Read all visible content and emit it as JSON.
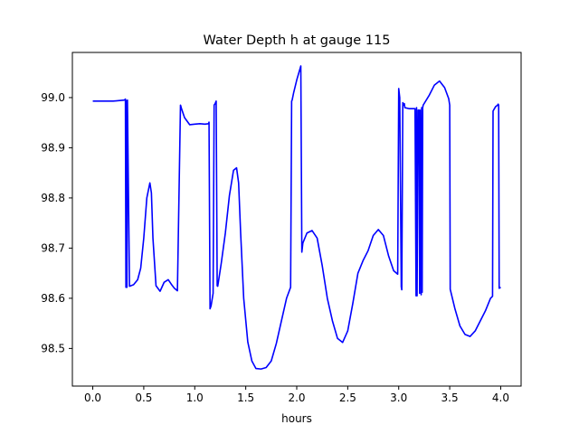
{
  "chart_data": {
    "type": "line",
    "title": "Water Depth h at gauge 115",
    "xlabel": "hours",
    "ylabel": "",
    "xlim": [
      -0.2,
      4.2
    ],
    "ylim": [
      98.425,
      99.09
    ],
    "grid": false,
    "x_ticks": [
      0.0,
      0.5,
      1.0,
      1.5,
      2.0,
      2.5,
      3.0,
      3.5,
      4.0
    ],
    "x_tick_labels": [
      "0.0",
      "0.5",
      "1.0",
      "1.5",
      "2.0",
      "2.5",
      "3.0",
      "3.5",
      "4.0"
    ],
    "y_ticks": [
      98.5,
      98.6,
      98.7,
      98.8,
      98.9,
      99.0
    ],
    "y_tick_labels": [
      "98.5",
      "98.6",
      "98.7",
      "98.8",
      "98.9",
      "99.0"
    ],
    "colors": {
      "line": "#0000ff",
      "axes": "#000000",
      "background": "#ffffff"
    },
    "series": [
      {
        "x": [
          0.0,
          0.2,
          0.31,
          0.32,
          0.325,
          0.33,
          0.335,
          0.34,
          0.36,
          0.4,
          0.44,
          0.47,
          0.5,
          0.53,
          0.56,
          0.575,
          0.59,
          0.62,
          0.66,
          0.7,
          0.74,
          0.77,
          0.8,
          0.83,
          0.86,
          0.862,
          0.87,
          0.9,
          0.95,
          1.0,
          1.05,
          1.1,
          1.135,
          1.14,
          1.15,
          1.16,
          1.18,
          1.19,
          1.2,
          1.21,
          1.22,
          1.225,
          1.23,
          1.26,
          1.3,
          1.34,
          1.38,
          1.41,
          1.43,
          1.45,
          1.48,
          1.52,
          1.56,
          1.6,
          1.65,
          1.7,
          1.75,
          1.8,
          1.85,
          1.9,
          1.94,
          1.95,
          1.955,
          1.97,
          2.0,
          2.04,
          2.05,
          2.06,
          2.1,
          2.15,
          2.2,
          2.25,
          2.3,
          2.35,
          2.4,
          2.45,
          2.5,
          2.55,
          2.6,
          2.65,
          2.7,
          2.75,
          2.8,
          2.85,
          2.9,
          2.95,
          2.99,
          3.0,
          3.01,
          3.025,
          3.03,
          3.04,
          3.05,
          3.055,
          3.06,
          3.1,
          3.16,
          3.17,
          3.175,
          3.18,
          3.19,
          3.2,
          3.205,
          3.21,
          3.22,
          3.225,
          3.23,
          3.235,
          3.24,
          3.3,
          3.35,
          3.4,
          3.45,
          3.49,
          3.5,
          3.505,
          3.55,
          3.6,
          3.65,
          3.7,
          3.75,
          3.8,
          3.85,
          3.9,
          3.92,
          3.925,
          3.93,
          3.95,
          3.97,
          3.975,
          3.98,
          3.985,
          4.0
        ],
        "y": [
          98.993,
          98.993,
          98.995,
          98.997,
          98.622,
          98.994,
          98.622,
          98.995,
          98.624,
          98.627,
          98.637,
          98.66,
          98.72,
          98.8,
          98.83,
          98.81,
          98.72,
          98.625,
          98.614,
          98.632,
          98.637,
          98.628,
          98.62,
          98.615,
          98.985,
          98.984,
          98.978,
          98.96,
          98.946,
          98.947,
          98.948,
          98.947,
          98.948,
          98.951,
          98.579,
          98.585,
          98.61,
          98.985,
          98.988,
          98.993,
          98.625,
          98.624,
          98.63,
          98.67,
          98.73,
          98.805,
          98.855,
          98.86,
          98.83,
          98.73,
          98.6,
          98.513,
          98.475,
          98.46,
          98.459,
          98.462,
          98.475,
          98.51,
          98.555,
          98.6,
          98.622,
          98.993,
          98.995,
          99.01,
          99.035,
          99.063,
          98.692,
          98.71,
          98.73,
          98.735,
          98.72,
          98.665,
          98.6,
          98.555,
          98.52,
          98.512,
          98.535,
          98.59,
          98.65,
          98.675,
          98.695,
          98.725,
          98.737,
          98.725,
          98.685,
          98.655,
          98.648,
          99.018,
          99.0,
          98.623,
          98.617,
          98.99,
          98.985,
          98.988,
          98.98,
          98.978,
          98.978,
          98.605,
          98.98,
          98.605,
          98.975,
          98.975,
          98.61,
          98.975,
          98.607,
          98.98,
          98.612,
          98.98,
          98.985,
          99.005,
          99.025,
          99.033,
          99.02,
          98.998,
          98.985,
          98.618,
          98.58,
          98.545,
          98.528,
          98.524,
          98.535,
          98.555,
          98.575,
          98.6,
          98.604,
          98.973,
          98.975,
          98.982,
          98.985,
          98.987,
          98.985,
          98.62,
          98.622
        ]
      }
    ]
  }
}
